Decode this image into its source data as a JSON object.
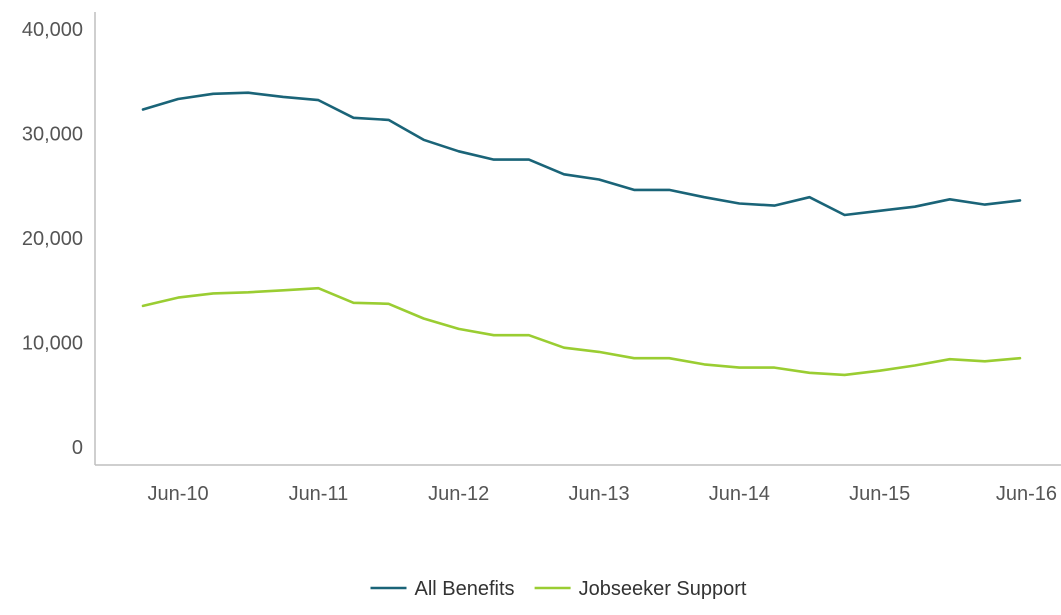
{
  "chart_data": {
    "type": "line",
    "title": "",
    "xlabel": "",
    "ylabel": "",
    "ylim": [
      0,
      40000
    ],
    "y_ticks": [
      {
        "value": 0,
        "label": "0"
      },
      {
        "value": 10000,
        "label": "10,000"
      },
      {
        "value": 20000,
        "label": "20,000"
      },
      {
        "value": 30000,
        "label": "30,000"
      },
      {
        "value": 40000,
        "label": "40,000"
      }
    ],
    "x_ticks": [
      "Jun-10",
      "Jun-11",
      "Jun-12",
      "Jun-13",
      "Jun-14",
      "Jun-15",
      "Jun-16"
    ],
    "categories": [
      "Mar-10",
      "Jun-10",
      "Sep-10",
      "Dec-10",
      "Mar-11",
      "Jun-11",
      "Sep-11",
      "Dec-11",
      "Mar-12",
      "Jun-12",
      "Sep-12",
      "Dec-12",
      "Mar-13",
      "Jun-13",
      "Sep-13",
      "Dec-13",
      "Mar-14",
      "Jun-14",
      "Sep-14",
      "Dec-14",
      "Mar-15",
      "Jun-15",
      "Sep-15",
      "Dec-15",
      "Mar-16",
      "Jun-16"
    ],
    "grid": false,
    "legend_position": "bottom-center",
    "series": [
      {
        "name": "All Benefits",
        "color": "#1a6478",
        "values": [
          32300,
          33300,
          33800,
          33900,
          33500,
          33200,
          31500,
          31300,
          29400,
          28300,
          27500,
          27500,
          26100,
          25600,
          24600,
          24600,
          23900,
          23300,
          23100,
          23900,
          22200,
          22600,
          23000,
          23700,
          23200,
          23600
        ]
      },
      {
        "name": "Jobseeker Support",
        "color": "#9acd32",
        "values": [
          13500,
          14300,
          14700,
          14800,
          15000,
          15200,
          13800,
          13700,
          12300,
          11300,
          10700,
          10700,
          9500,
          9100,
          8500,
          8500,
          7900,
          7600,
          7600,
          7100,
          6900,
          7300,
          7800,
          8400,
          8200,
          8500
        ]
      }
    ]
  }
}
